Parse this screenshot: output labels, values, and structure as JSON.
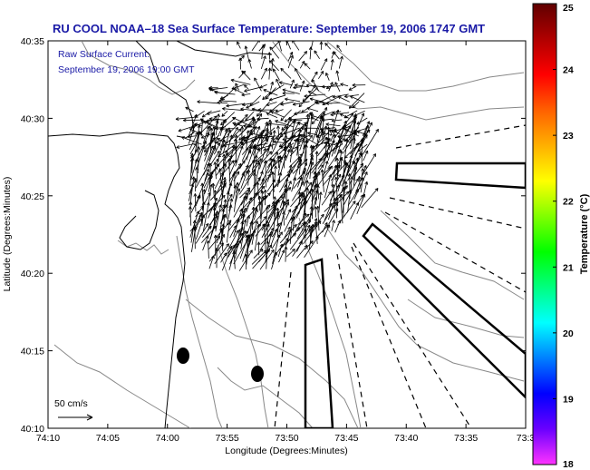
{
  "title": "RU COOL  NOAA–18  Sea Surface Temperature:  September 19, 2006 1747 GMT",
  "annotation": {
    "line1": "Raw Surface Current:",
    "line2": "September 19, 2006 19:00 GMT"
  },
  "scale_label": "50 cm/s",
  "x_axis": {
    "label": "Longitude (Degrees:Minutes)",
    "ticks": [
      "74:10",
      "74:05",
      "74:00",
      "73:55",
      "73:50",
      "73:45",
      "73:40",
      "73:35",
      "73:3"
    ]
  },
  "y_axis": {
    "label": "Latitude (Degrees:Minutes)",
    "ticks": [
      "40:35",
      "40:30",
      "40:25",
      "40:20",
      "40:15",
      "40:10"
    ]
  },
  "colorbar": {
    "label": "Temperature (°C)",
    "ticks": [
      "25",
      "24",
      "23",
      "22",
      "21",
      "20",
      "19",
      "18"
    ],
    "range": [
      18,
      25
    ],
    "colors": [
      "#ff33ff",
      "#6a00ff",
      "#0000ff",
      "#0080ff",
      "#00ffff",
      "#00ff80",
      "#00ff00",
      "#80ff00",
      "#ffff00",
      "#ffb000",
      "#ff6000",
      "#ff0000",
      "#b00000",
      "#600000"
    ]
  },
  "colors": {
    "title": "#1a1aa6",
    "coast": "#000000",
    "bathymetry": "#888888",
    "background": "#ffffff"
  }
}
